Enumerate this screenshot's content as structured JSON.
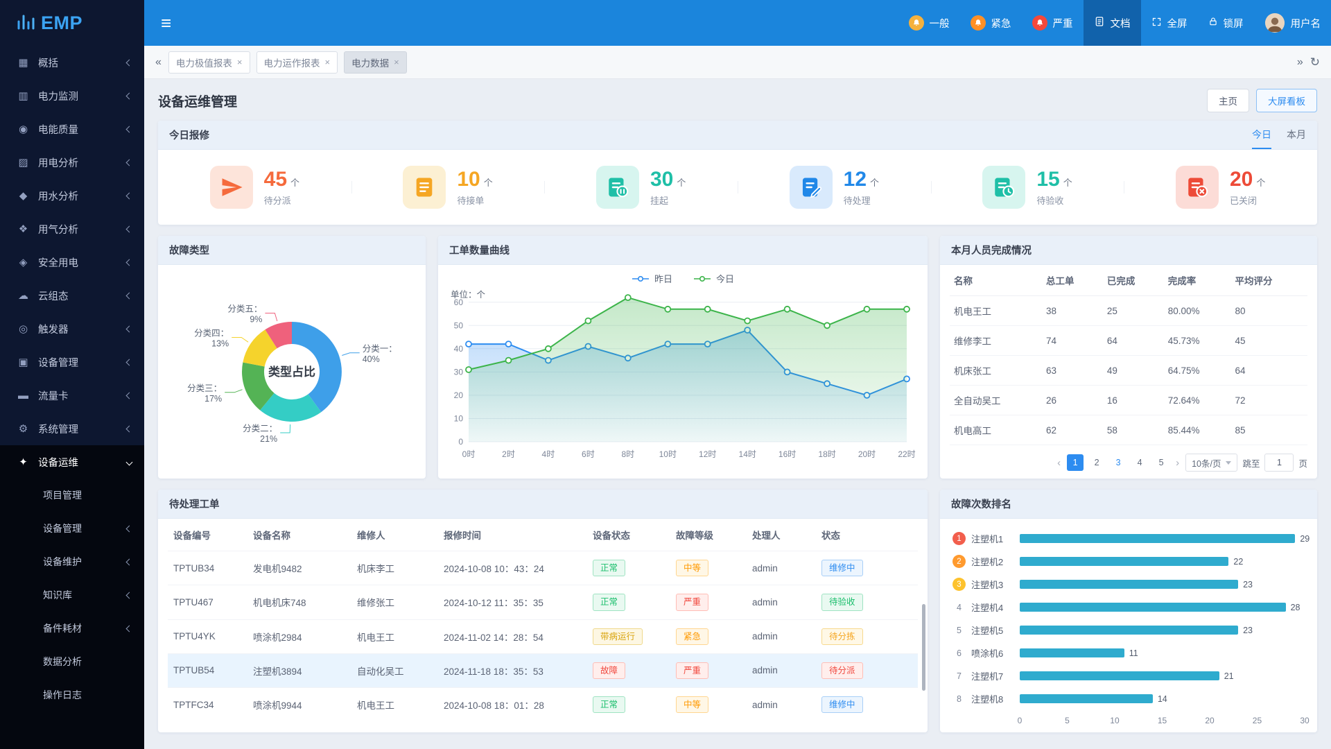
{
  "logo": {
    "text": "EMP"
  },
  "topbar": {
    "notifications": [
      {
        "label": "一般",
        "color": "#f5b13d"
      },
      {
        "label": "紧急",
        "color": "#ff9026"
      },
      {
        "label": "严重",
        "color": "#f5483b"
      }
    ],
    "doc_label": "文档",
    "fullscreen_label": "全屏",
    "lock_label": "锁屏",
    "user_label": "用户名"
  },
  "sidebar": {
    "items": [
      {
        "label": "概括",
        "icon": "overview-icon"
      },
      {
        "label": "电力监测",
        "icon": "power-monitor-icon"
      },
      {
        "label": "电能质量",
        "icon": "power-quality-icon"
      },
      {
        "label": "用电分析",
        "icon": "electricity-analysis-icon"
      },
      {
        "label": "用水分析",
        "icon": "water-analysis-icon"
      },
      {
        "label": "用气分析",
        "icon": "gas-analysis-icon"
      },
      {
        "label": "安全用电",
        "icon": "safe-power-icon"
      },
      {
        "label": "云组态",
        "icon": "cloud-config-icon"
      },
      {
        "label": "触发器",
        "icon": "trigger-icon"
      },
      {
        "label": "设备管理",
        "icon": "device-manage-icon"
      },
      {
        "label": "流量卡",
        "icon": "sim-card-icon"
      },
      {
        "label": "系统管理",
        "icon": "system-manage-icon"
      }
    ],
    "active_group": {
      "label": "设备运维",
      "icon": "device-ops-icon"
    },
    "submenu": [
      {
        "label": "项目管理",
        "arrow": false
      },
      {
        "label": "设备管理",
        "arrow": true
      },
      {
        "label": "设备维护",
        "arrow": true
      },
      {
        "label": "知识库",
        "arrow": true
      },
      {
        "label": "备件耗材",
        "arrow": true
      },
      {
        "label": "数据分析",
        "arrow": false
      },
      {
        "label": "操作日志",
        "arrow": false
      }
    ]
  },
  "tabbar": {
    "tabs": [
      {
        "label": "电力极值报表",
        "active": false
      },
      {
        "label": "电力运作报表",
        "active": false
      },
      {
        "label": "电力数据",
        "active": true
      }
    ]
  },
  "page": {
    "title": "设备运维管理",
    "home_btn": "主页",
    "board_btn": "大屏看板"
  },
  "today_repair": {
    "title": "今日报修",
    "toggles": [
      {
        "label": "今日",
        "active": true
      },
      {
        "label": "本月",
        "active": false
      }
    ],
    "stats": [
      {
        "value": "45",
        "unit": "个",
        "label": "待分派",
        "icon": "paper-plane-icon",
        "color": "#f56a3c",
        "bg": "#fde4da"
      },
      {
        "value": "10",
        "unit": "个",
        "label": "待接单",
        "icon": "doc-lines-icon",
        "color": "#f5a623",
        "bg": "#fcf0d3"
      },
      {
        "value": "30",
        "unit": "个",
        "label": "挂起",
        "icon": "doc-pause-icon",
        "color": "#1fbfa7",
        "bg": "#d7f5ef"
      },
      {
        "value": "12",
        "unit": "个",
        "label": "待处理",
        "icon": "doc-pen-icon",
        "color": "#2188e8",
        "bg": "#d9eafc"
      },
      {
        "value": "15",
        "unit": "个",
        "label": "待验收",
        "icon": "doc-clock-icon",
        "color": "#1fbfa7",
        "bg": "#d7f5ef"
      },
      {
        "value": "20",
        "unit": "个",
        "label": "已关闭",
        "icon": "doc-x-icon",
        "color": "#ed4b38",
        "bg": "#fcdcd7"
      }
    ]
  },
  "chart_data": [
    {
      "type": "pie",
      "title": "故障类型",
      "center_label": "类型占比",
      "labels": [
        "分类一",
        "分类二",
        "分类三",
        "分类四",
        "分类五"
      ],
      "values": [
        40,
        21,
        17,
        13,
        9
      ],
      "unit": "%",
      "colors": [
        "#3e9fe9",
        "#34cdc5",
        "#54b355",
        "#f5d32c",
        "#ef617c"
      ]
    },
    {
      "type": "line",
      "title": "工单数量曲线",
      "unit_label": "单位：个",
      "x_labels": [
        "0时",
        "2时",
        "4时",
        "6时",
        "8时",
        "10时",
        "12时",
        "14时",
        "16时",
        "18时",
        "20时",
        "22时"
      ],
      "y_ticks": [
        0,
        10,
        20,
        30,
        40,
        50,
        60
      ],
      "ylim": [
        0,
        65
      ],
      "legend_position": "top",
      "grid": true,
      "series": [
        {
          "name": "昨日",
          "color": "#2d8cf0",
          "values": [
            42,
            42,
            35,
            41,
            36,
            42,
            42,
            48,
            30,
            25,
            20,
            27
          ]
        },
        {
          "name": "今日",
          "color": "#3cb44a",
          "values": [
            31,
            35,
            40,
            52,
            62,
            57,
            57,
            52,
            57,
            50,
            57,
            57
          ]
        }
      ]
    },
    {
      "type": "bar",
      "title": "故障次数排名",
      "orientation": "horizontal",
      "categories": [
        "注塑机1",
        "注塑机2",
        "注塑机3",
        "注塑机4",
        "注塑机5",
        "喷涂机6",
        "注塑机7",
        "注塑机8"
      ],
      "values": [
        29,
        22,
        23,
        28,
        23,
        11,
        21,
        14
      ],
      "bar_color": "#2fabce",
      "rank_colors": [
        "#f25e4c",
        "#ff9a2e",
        "#fdc22d"
      ],
      "x_ticks": [
        0,
        5,
        10,
        15,
        20,
        25,
        30
      ],
      "xlim": [
        0,
        30
      ]
    }
  ],
  "personnel": {
    "title": "本月人员完成情况",
    "columns": [
      "名称",
      "总工单",
      "已完成",
      "完成率",
      "平均评分"
    ],
    "rows": [
      [
        "机电王工",
        "38",
        "25",
        "80.00%",
        "80"
      ],
      [
        "维修李工",
        "74",
        "64",
        "45.73%",
        "45"
      ],
      [
        "机床张工",
        "63",
        "49",
        "64.75%",
        "64"
      ],
      [
        "全自动吴工",
        "26",
        "16",
        "72.64%",
        "72"
      ],
      [
        "机电高工",
        "62",
        "58",
        "85.44%",
        "85"
      ]
    ],
    "pagination": {
      "pages": [
        "1",
        "2",
        "3",
        "4",
        "5"
      ],
      "active_page": "1",
      "highlight_page": "3",
      "page_size": "10条/页",
      "jump_label": "跳至",
      "jump_value": "1",
      "page_suffix": "页"
    }
  },
  "pending": {
    "title": "待处理工单",
    "columns": [
      "设备编号",
      "设备名称",
      "维修人",
      "报修时间",
      "设备状态",
      "故障等级",
      "处理人",
      "状态"
    ],
    "highlight_row": 3,
    "rows": [
      {
        "cells": [
          "TPTUB34",
          "发电机9482",
          "机床李工",
          "2024-10-08 10：43：24"
        ],
        "device_status": {
          "text": "正常",
          "type": "green"
        },
        "fault_level": {
          "text": "中等",
          "type": "orange"
        },
        "handler": "admin",
        "status": {
          "text": "维修中",
          "type": "blue"
        }
      },
      {
        "cells": [
          "TPTU467",
          "机电机床748",
          "维修张工",
          "2024-10-12 11：35：35"
        ],
        "device_status": {
          "text": "正常",
          "type": "green"
        },
        "fault_level": {
          "text": "严重",
          "type": "red"
        },
        "handler": "admin",
        "status": {
          "text": "待验收",
          "type": "green"
        }
      },
      {
        "cells": [
          "TPTU4YK",
          "喷涂机2984",
          "机电王工",
          "2024-11-02 14：28：54"
        ],
        "device_status": {
          "text": "带病运行",
          "type": "yellow"
        },
        "fault_level": {
          "text": "紧急",
          "type": "orange"
        },
        "handler": "admin",
        "status": {
          "text": "待分拣",
          "type": "amber"
        }
      },
      {
        "cells": [
          "TPTUB54",
          "注塑机3894",
          "自动化吴工",
          "2024-11-18 18：35：53"
        ],
        "device_status": {
          "text": "故障",
          "type": "red"
        },
        "fault_level": {
          "text": "严重",
          "type": "red"
        },
        "handler": "admin",
        "status": {
          "text": "待分派",
          "type": "red"
        }
      },
      {
        "cells": [
          "TPTFC34",
          "喷涂机9944",
          "机电王工",
          "2024-10-08 18：01：28"
        ],
        "device_status": {
          "text": "正常",
          "type": "green"
        },
        "fault_level": {
          "text": "中等",
          "type": "orange"
        },
        "handler": "admin",
        "status": {
          "text": "维修中",
          "type": "blue"
        }
      }
    ]
  }
}
